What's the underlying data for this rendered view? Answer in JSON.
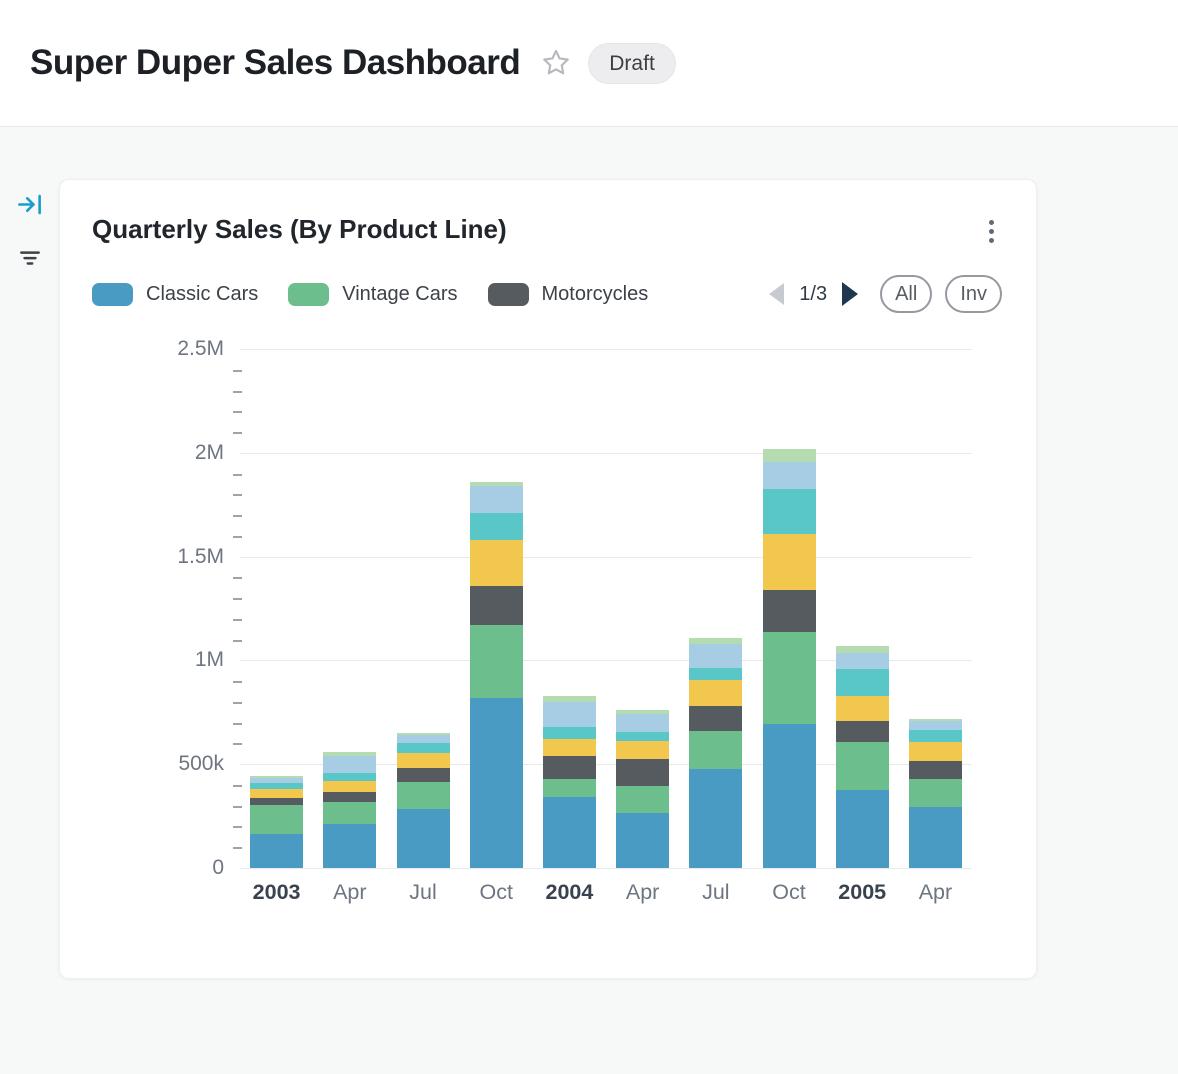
{
  "header": {
    "title": "Super Duper Sales Dashboard",
    "draft_badge": "Draft"
  },
  "sidebar": {
    "icons": [
      {
        "name": "collapse-panel-icon"
      },
      {
        "name": "filter-icon"
      }
    ]
  },
  "card": {
    "title": "Quarterly Sales (By Product Line)",
    "legend": {
      "items": [
        {
          "label": "Classic Cars",
          "color": "#4a9bc4"
        },
        {
          "label": "Vintage Cars",
          "color": "#6cbe8d"
        },
        {
          "label": "Motorcycles",
          "color": "#565b60"
        }
      ],
      "pager": {
        "page": "1/3"
      },
      "buttons": [
        {
          "label": "All"
        },
        {
          "label": "Inv"
        }
      ]
    }
  },
  "chart_data": {
    "type": "bar",
    "stacked": true,
    "title": "Quarterly Sales (By Product Line)",
    "ylim": [
      0,
      2500000
    ],
    "y_tick_labels": [
      "2.5M",
      "2M",
      "1.5M",
      "1M",
      "500k",
      "0"
    ],
    "minor_tick_step": 100000,
    "grid": true,
    "legend_position": "top",
    "categories": [
      {
        "label": "2003",
        "bold": true
      },
      {
        "label": "Apr",
        "bold": false
      },
      {
        "label": "Jul",
        "bold": false
      },
      {
        "label": "Oct",
        "bold": false
      },
      {
        "label": "2004",
        "bold": true
      },
      {
        "label": "Apr",
        "bold": false
      },
      {
        "label": "Jul",
        "bold": false
      },
      {
        "label": "Oct",
        "bold": false
      },
      {
        "label": "2005",
        "bold": true
      },
      {
        "label": "Apr",
        "bold": false
      }
    ],
    "series": [
      {
        "name": "Classic Cars",
        "color": "#4a9bc4",
        "values": [
          165000,
          210000,
          285000,
          820000,
          340000,
          265000,
          475000,
          695000,
          375000,
          295000
        ]
      },
      {
        "name": "Vintage Cars",
        "color": "#6cbe8d",
        "values": [
          140000,
          110000,
          130000,
          350000,
          90000,
          130000,
          185000,
          440000,
          230000,
          135000
        ]
      },
      {
        "name": "Motorcycles",
        "color": "#565b60",
        "values": [
          30000,
          45000,
          65000,
          190000,
          110000,
          130000,
          120000,
          205000,
          105000,
          85000
        ]
      },
      {
        "name": "",
        "color": "#f2c74e",
        "values": [
          45000,
          55000,
          75000,
          220000,
          80000,
          85000,
          125000,
          270000,
          120000,
          90000
        ]
      },
      {
        "name": "",
        "color": "#59c6c7",
        "values": [
          30000,
          40000,
          45000,
          130000,
          60000,
          45000,
          60000,
          215000,
          130000,
          60000
        ]
      },
      {
        "name": "",
        "color": "#a7cde4",
        "values": [
          25000,
          80000,
          40000,
          130000,
          120000,
          85000,
          115000,
          130000,
          75000,
          45000
        ]
      },
      {
        "name": "",
        "color": "#b5dcb0",
        "values": [
          10000,
          20000,
          10000,
          20000,
          30000,
          20000,
          30000,
          65000,
          35000,
          10000
        ]
      }
    ]
  }
}
